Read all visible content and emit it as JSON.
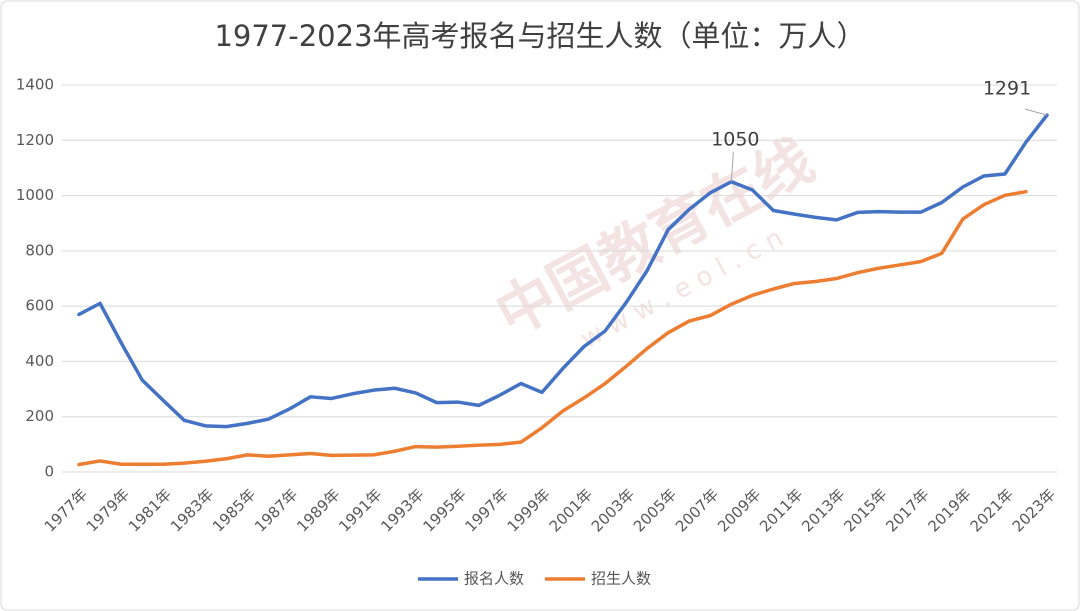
{
  "chart_data": {
    "type": "line",
    "title": "1977-2023年高考报名与招生人数（单位：万人）",
    "categories": [
      "1977年",
      null,
      "1979年",
      null,
      "1981年",
      null,
      "1983年",
      null,
      "1985年",
      null,
      "1987年",
      null,
      "1989年",
      null,
      "1991年",
      null,
      "1993年",
      null,
      "1995年",
      null,
      "1997年",
      null,
      "1999年",
      null,
      "2001年",
      null,
      "2003年",
      null,
      "2005年",
      null,
      "2007年",
      null,
      "2009年",
      null,
      "2011年",
      null,
      "2013年",
      null,
      "2015年",
      null,
      "2017年",
      null,
      "2019年",
      null,
      "2021年",
      null,
      "2023年"
    ],
    "series": [
      {
        "name": "报名人数",
        "color": "#4472c4",
        "values": [
          570,
          610,
          468,
          333,
          259,
          187,
          167,
          164,
          176,
          191,
          228,
          272,
          266,
          283,
          296,
          303,
          286,
          251,
          253,
          241,
          278,
          320,
          288,
          375,
          454,
          510,
          613,
          729,
          877,
          950,
          1010,
          1050,
          1020,
          946,
          933,
          921,
          912,
          939,
          942,
          940,
          940,
          975,
          1031,
          1071,
          1078,
          1193,
          1291
        ]
      },
      {
        "name": "招生人数",
        "color": "#ed7d31",
        "values": [
          27,
          40,
          28,
          28,
          28,
          32,
          39,
          48,
          62,
          57,
          62,
          67,
          60,
          61,
          62,
          75,
          92,
          90,
          93,
          97,
          100,
          108,
          160,
          221,
          268,
          320,
          382,
          447,
          504,
          546,
          566,
          607,
          639,
          662,
          682,
          689,
          700,
          721,
          737,
          749,
          761,
          791,
          915,
          967,
          1001,
          1014,
          null
        ]
      }
    ],
    "labeled_points": [
      {
        "series": 0,
        "index": 31
      },
      {
        "series": 0,
        "index": 46
      }
    ],
    "ylim": [
      0,
      1400
    ],
    "yticks": [
      0,
      200,
      400,
      600,
      800,
      1000,
      1200,
      1400
    ],
    "grid": true,
    "legend": "bottom",
    "watermark": "中国教育在线",
    "watermark_url": "w w w . e o l . c n"
  }
}
